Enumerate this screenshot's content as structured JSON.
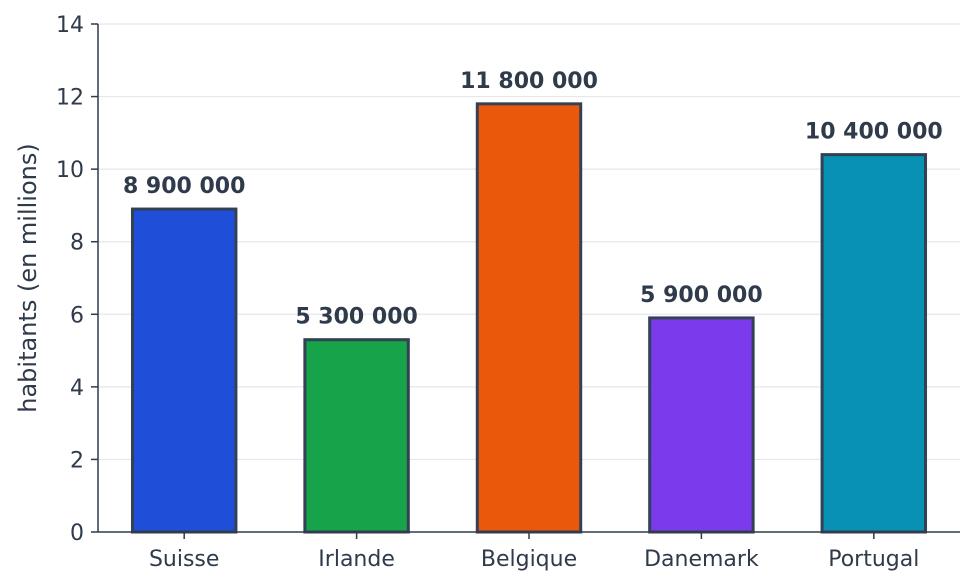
{
  "chart_data": {
    "type": "bar",
    "categories": [
      "Suisse",
      "Irlande",
      "Belgique",
      "Danemark",
      "Portugal"
    ],
    "values": [
      8.9,
      5.3,
      11.8,
      5.9,
      10.4
    ],
    "data_labels": [
      "8 900 000",
      "5 300 000",
      "11 800 000",
      "5 900 000",
      "10 400 000"
    ],
    "colors": [
      "#1f4fd8",
      "#16a34a",
      "#ea580c",
      "#7c3aed",
      "#0891b2"
    ],
    "bar_edge_color": "#334155",
    "title": "",
    "xlabel": "",
    "ylabel": "habitants (en millions)",
    "ylim": [
      0,
      14
    ],
    "yticks": [
      0,
      2,
      4,
      6,
      8,
      10,
      12,
      14
    ],
    "grid": "horizontal",
    "legend": "none"
  }
}
